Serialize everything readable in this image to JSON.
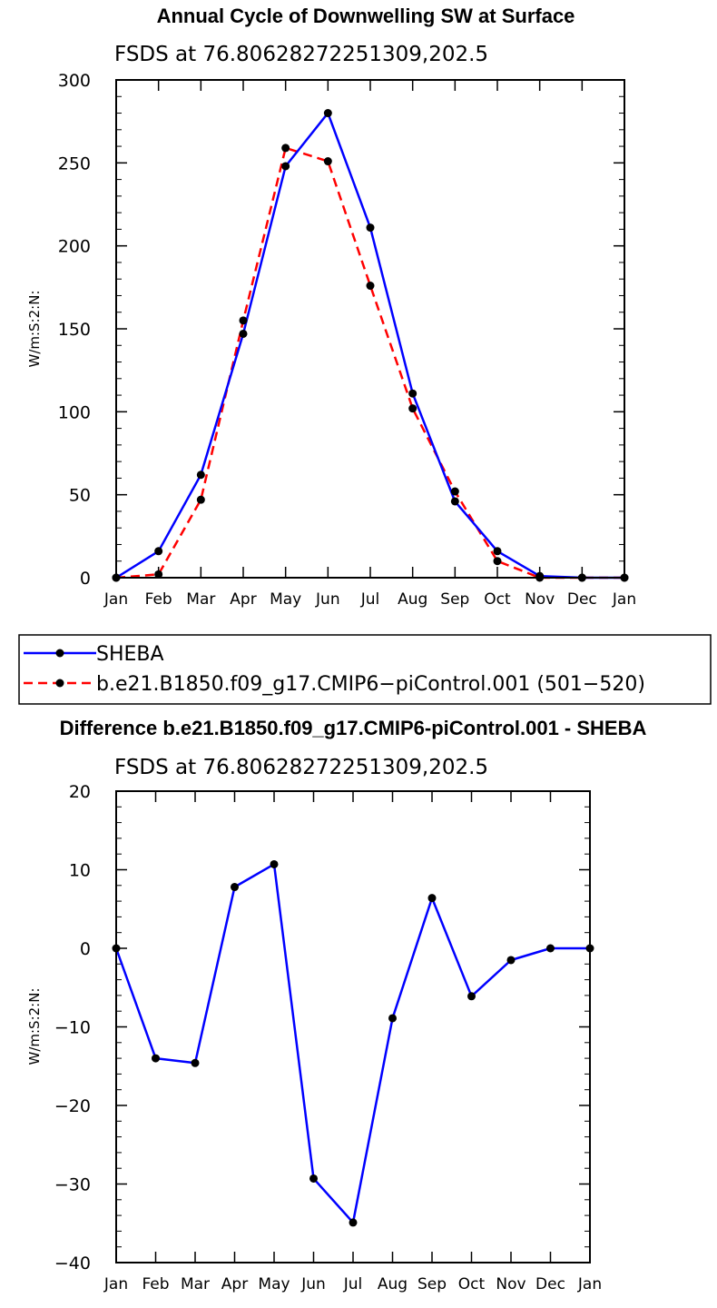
{
  "chart_data": [
    {
      "type": "line",
      "title": "Annual Cycle of Downwelling SW at Surface",
      "subtitle": "FSDS at 76.80628272251309,202.5",
      "ylabel": "W/m:S:2:N:",
      "xlabel": "",
      "categories": [
        "Jan",
        "Feb",
        "Mar",
        "Apr",
        "May",
        "Jun",
        "Jul",
        "Aug",
        "Sep",
        "Oct",
        "Nov",
        "Dec",
        "Jan"
      ],
      "ylim": [
        0,
        300
      ],
      "yticks": [
        0,
        50,
        100,
        150,
        200,
        250,
        300
      ],
      "yticks_labels": [
        "0",
        "50",
        "100",
        "150",
        "200",
        "250",
        "300"
      ],
      "grid": false,
      "series": [
        {
          "name": "SHEBA",
          "color": "#0000ff",
          "style": "solid",
          "values": [
            0,
            16,
            62,
            147,
            248,
            280,
            211,
            111,
            46,
            16,
            1,
            0,
            0
          ]
        },
        {
          "name": "b.e21.B1850.f09_g17.CMIP6−piControl.001 (501−520)",
          "color": "#ff0000",
          "style": "dashed",
          "values": [
            0,
            2,
            47,
            155,
            259,
            251,
            176,
            102,
            52,
            10,
            0,
            0,
            0
          ]
        }
      ],
      "legend": "bottom"
    },
    {
      "type": "line",
      "title": "Difference b.e21.B1850.f09_g17.CMIP6-piControl.001 - SHEBA",
      "subtitle": "FSDS at 76.80628272251309,202.5",
      "ylabel": "W/m:S:2:N:",
      "xlabel": "",
      "categories": [
        "Jan",
        "Feb",
        "Mar",
        "Apr",
        "May",
        "Jun",
        "Jul",
        "Aug",
        "Sep",
        "Oct",
        "Nov",
        "Dec",
        "Jan"
      ],
      "ylim": [
        -40,
        20
      ],
      "yticks": [
        -40,
        -30,
        -20,
        -10,
        0,
        10,
        20
      ],
      "yticks_labels": [
        "−40",
        "−30",
        "−20",
        "−10",
        "0",
        "10",
        "20"
      ],
      "grid": false,
      "series": [
        {
          "color": "#0000ff",
          "style": "solid",
          "values": [
            0,
            -14,
            -14.6,
            7.8,
            10.7,
            -29.3,
            -34.9,
            -8.9,
            6.4,
            -6.1,
            -1.5,
            0,
            0
          ]
        }
      ]
    }
  ]
}
